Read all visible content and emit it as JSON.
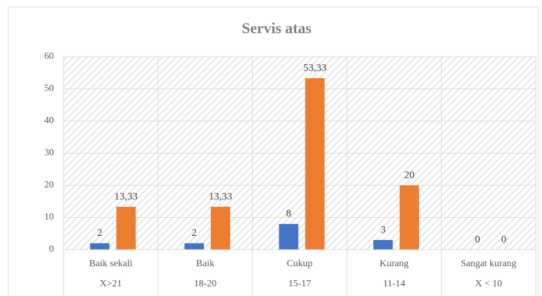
{
  "chart_data": {
    "type": "bar",
    "title": "Servis atas",
    "categories": [
      "Baik sekali",
      "Baik",
      "Cukup",
      "Kurang",
      "Sangat kurang"
    ],
    "subcategories": [
      "X>21",
      "18-20",
      "15-17",
      "11-14",
      "X < 10"
    ],
    "series": [
      {
        "color": "#4472c4",
        "values": [
          2,
          2,
          8,
          3,
          0
        ]
      },
      {
        "color": "#ed7d31",
        "values": [
          13.33,
          13.33,
          53.33,
          20,
          0
        ],
        "value_labels": [
          "13,33",
          "13,33",
          "53,33",
          "20",
          "0"
        ]
      }
    ],
    "ylim": [
      0,
      60
    ],
    "yticks": [
      0,
      10,
      20,
      30,
      40,
      50,
      60
    ],
    "grid": true
  }
}
